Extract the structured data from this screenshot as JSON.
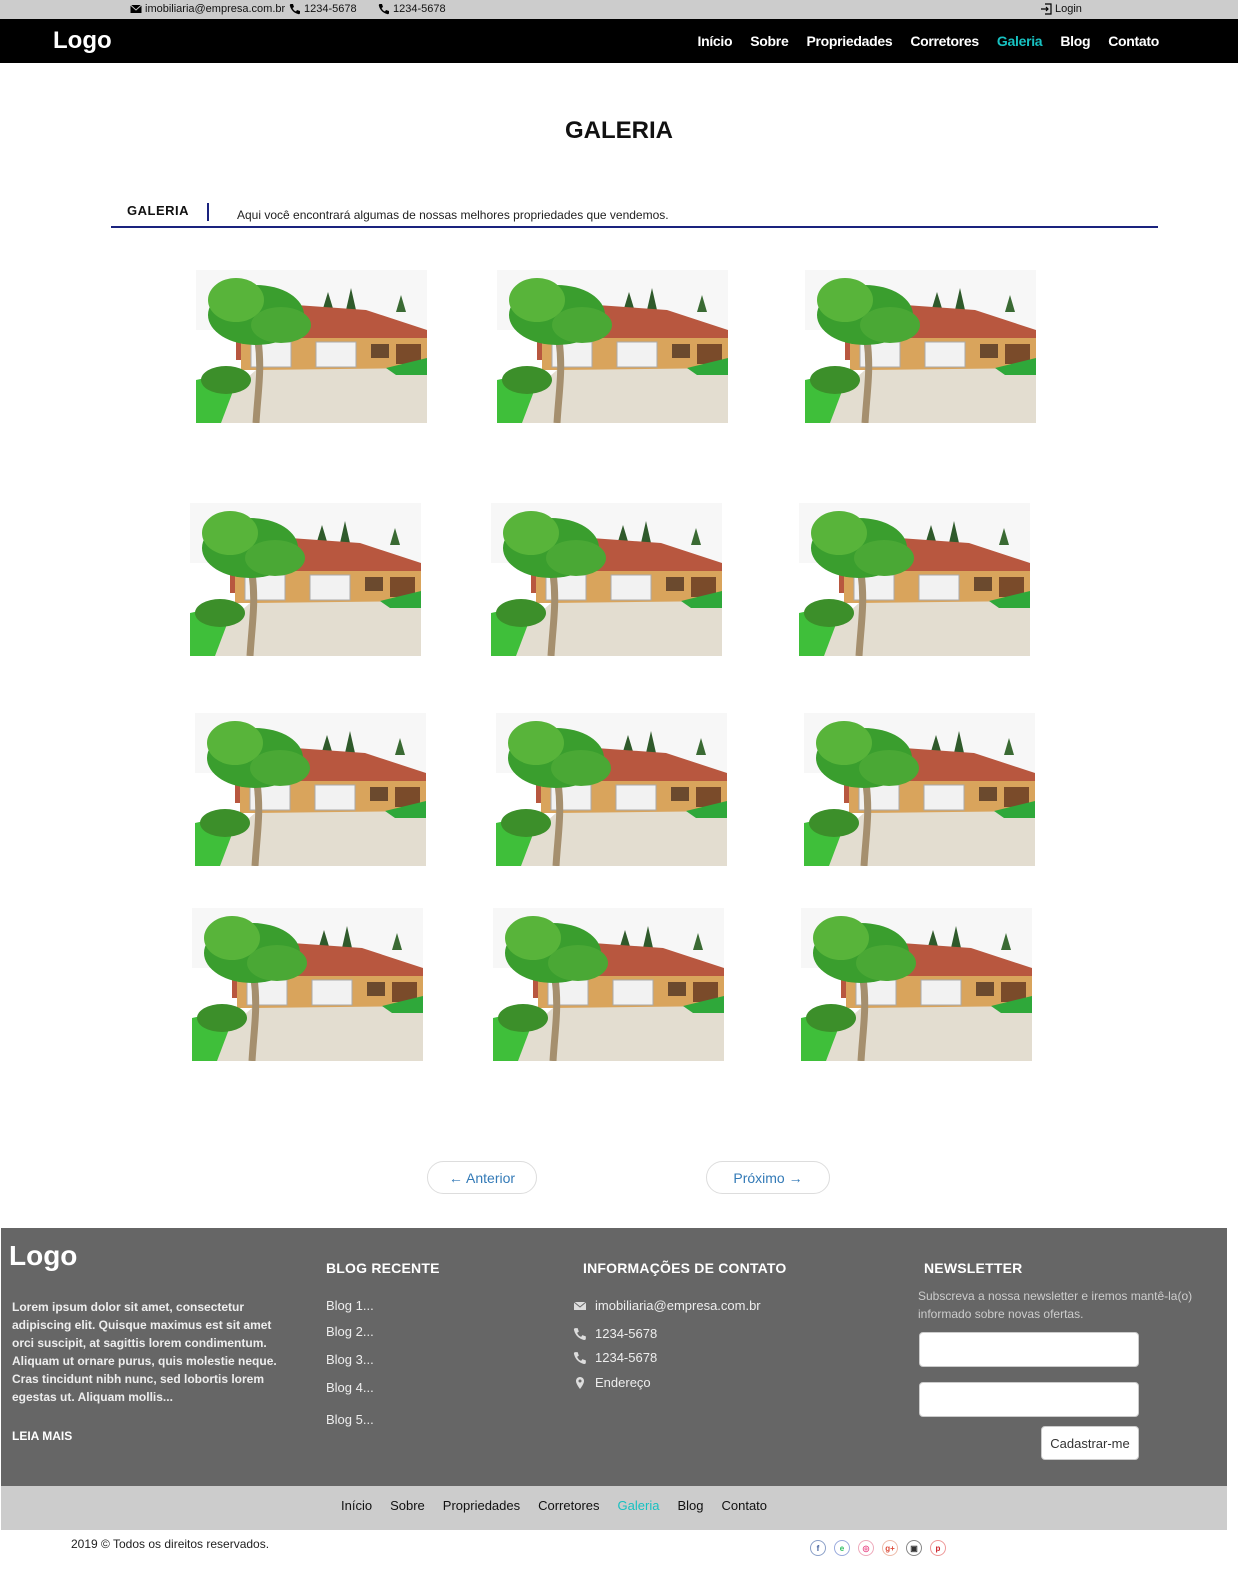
{
  "topbar": {
    "email": "imobiliaria@empresa.com.br",
    "phone1": "1234-5678",
    "phone2": "1234-5678",
    "login": "Login"
  },
  "nav": {
    "logo": "Logo",
    "items": [
      "Início",
      "Sobre",
      "Propriedades",
      "Corretores",
      "Galeria",
      "Blog",
      "Contato"
    ],
    "active": "Galeria"
  },
  "page": {
    "title": "GALERIA",
    "section_label": "GALERIA",
    "section_desc": "Aqui você encontrará algumas de nossas melhores propriedades que vendemos."
  },
  "gallery": {
    "count": 12,
    "image": "house-photo"
  },
  "pager": {
    "prev": "← Anterior",
    "next": "Próximo →"
  },
  "footer": {
    "logo": "Logo",
    "lorem": "Lorem ipsum dolor sit amet, consectetur adipiscing elit. Quisque maximus est sit amet orci suscipit, at sagittis lorem condimentum. Aliquam ut ornare purus, quis molestie neque. Cras tincidunt nibh nunc, sed lobortis lorem egestas ut. Aliquam mollis...",
    "read_more": "LEIA MAIS",
    "blog_title": "BLOG RECENTE",
    "blog_items": [
      "Blog 1...",
      "Blog 2...",
      "Blog 3...",
      "Blog 4...",
      "Blog 5..."
    ],
    "contact_title": "INFORMAÇÕES DE CONTATO",
    "contact_email": "imobiliaria@empresa.com.br",
    "contact_phone1": "1234-5678",
    "contact_phone2": "1234-5678",
    "contact_address": "Endereço",
    "newsletter_title": "NEWSLETTER",
    "newsletter_text": "Subscreva a nossa newsletter e iremos mantê-la(o) informado sobre novas ofertas.",
    "newsletter_button": "Cadastrar-me"
  },
  "bottomnav": {
    "items": [
      "Início",
      "Sobre",
      "Propriedades",
      "Corretores",
      "Galeria",
      "Blog",
      "Contato"
    ],
    "active": "Galeria"
  },
  "copyright": "2019 © Todos os direitos reservados.",
  "socials": [
    "facebook-icon",
    "evernote-icon",
    "dribbble-icon",
    "google-plus-icon",
    "instagram-icon",
    "pinterest-icon"
  ],
  "colors": {
    "accent": "#17c1c1",
    "nav_bg": "#000000",
    "footer_bg": "#666666",
    "rule": "#1a237e"
  }
}
